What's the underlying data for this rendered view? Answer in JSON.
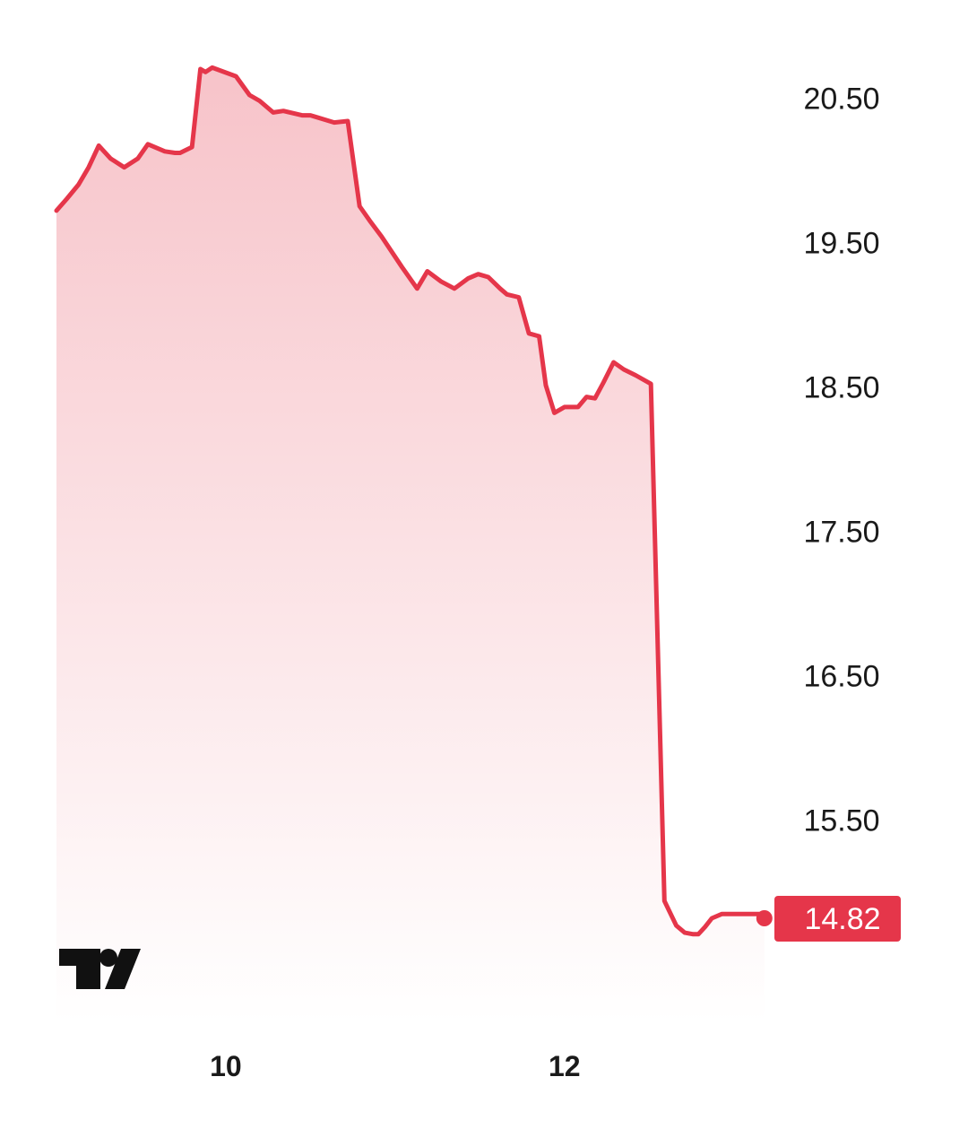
{
  "colors": {
    "line": "#e5364a",
    "fill_top": "#f7c3c9",
    "fill_bottom": "#ffffff",
    "badge_bg": "#e5364a",
    "badge_text": "#ffffff",
    "tick_text": "#1a1a1a",
    "logo": "#111111"
  },
  "logo": {
    "name": "TradingView",
    "icon": "tradingview-logo-icon"
  },
  "last_value_label": "14.82",
  "chart_data": {
    "type": "area",
    "title": "",
    "xlabel": "",
    "ylabel": "",
    "ylim": [
      14.1,
      20.93
    ],
    "xlim": [
      9.0,
      13.25
    ],
    "grid": false,
    "legend": "none",
    "y_ticks": [
      {
        "value": 20.5,
        "label": "20.50"
      },
      {
        "value": 19.5,
        "label": "19.50"
      },
      {
        "value": 18.5,
        "label": "18.50"
      },
      {
        "value": 17.5,
        "label": "17.50"
      },
      {
        "value": 16.5,
        "label": "16.50"
      },
      {
        "value": 15.5,
        "label": "15.50"
      }
    ],
    "x_ticks": [
      {
        "value": 10,
        "label": "10"
      },
      {
        "value": 12,
        "label": "12"
      }
    ],
    "last_value": 14.82,
    "series": [
      {
        "x": [
          9.0,
          9.06,
          9.13,
          9.19,
          9.25,
          9.32,
          9.4,
          9.48,
          9.54,
          9.64,
          9.7,
          9.73,
          9.8,
          9.85,
          9.88,
          9.92,
          10.06,
          10.14,
          10.2,
          10.28,
          10.34,
          10.45,
          10.5,
          10.64,
          10.72,
          10.79,
          10.85,
          10.92,
          11.04,
          11.13,
          11.19,
          11.27,
          11.35,
          11.43,
          11.49,
          11.55,
          11.62,
          11.66,
          11.73,
          11.79,
          11.85,
          11.89,
          11.94,
          12.0,
          12.08,
          12.13,
          12.18,
          12.23,
          12.29,
          12.35,
          12.42,
          12.51,
          12.59,
          12.66,
          12.71,
          12.76,
          12.79,
          12.83,
          12.87,
          12.93,
          13.0,
          13.05,
          13.07,
          13.11,
          13.15,
          13.18
        ],
        "values": [
          19.72,
          19.8,
          19.9,
          20.02,
          20.17,
          20.08,
          20.02,
          20.08,
          20.18,
          20.13,
          20.12,
          20.12,
          20.16,
          20.7,
          20.68,
          20.71,
          20.65,
          20.52,
          20.48,
          20.4,
          20.41,
          20.38,
          20.38,
          20.33,
          20.34,
          19.75,
          19.65,
          19.54,
          19.33,
          19.18,
          19.3,
          19.23,
          19.18,
          19.25,
          19.28,
          19.26,
          19.18,
          19.14,
          19.12,
          18.87,
          18.85,
          18.51,
          18.32,
          18.36,
          18.36,
          18.43,
          18.42,
          18.53,
          18.67,
          18.62,
          18.58,
          18.52,
          14.94,
          14.77,
          14.72,
          14.71,
          14.71,
          14.76,
          14.82,
          14.85,
          14.85,
          14.85,
          14.85,
          14.85,
          14.85,
          14.82
        ]
      }
    ]
  }
}
